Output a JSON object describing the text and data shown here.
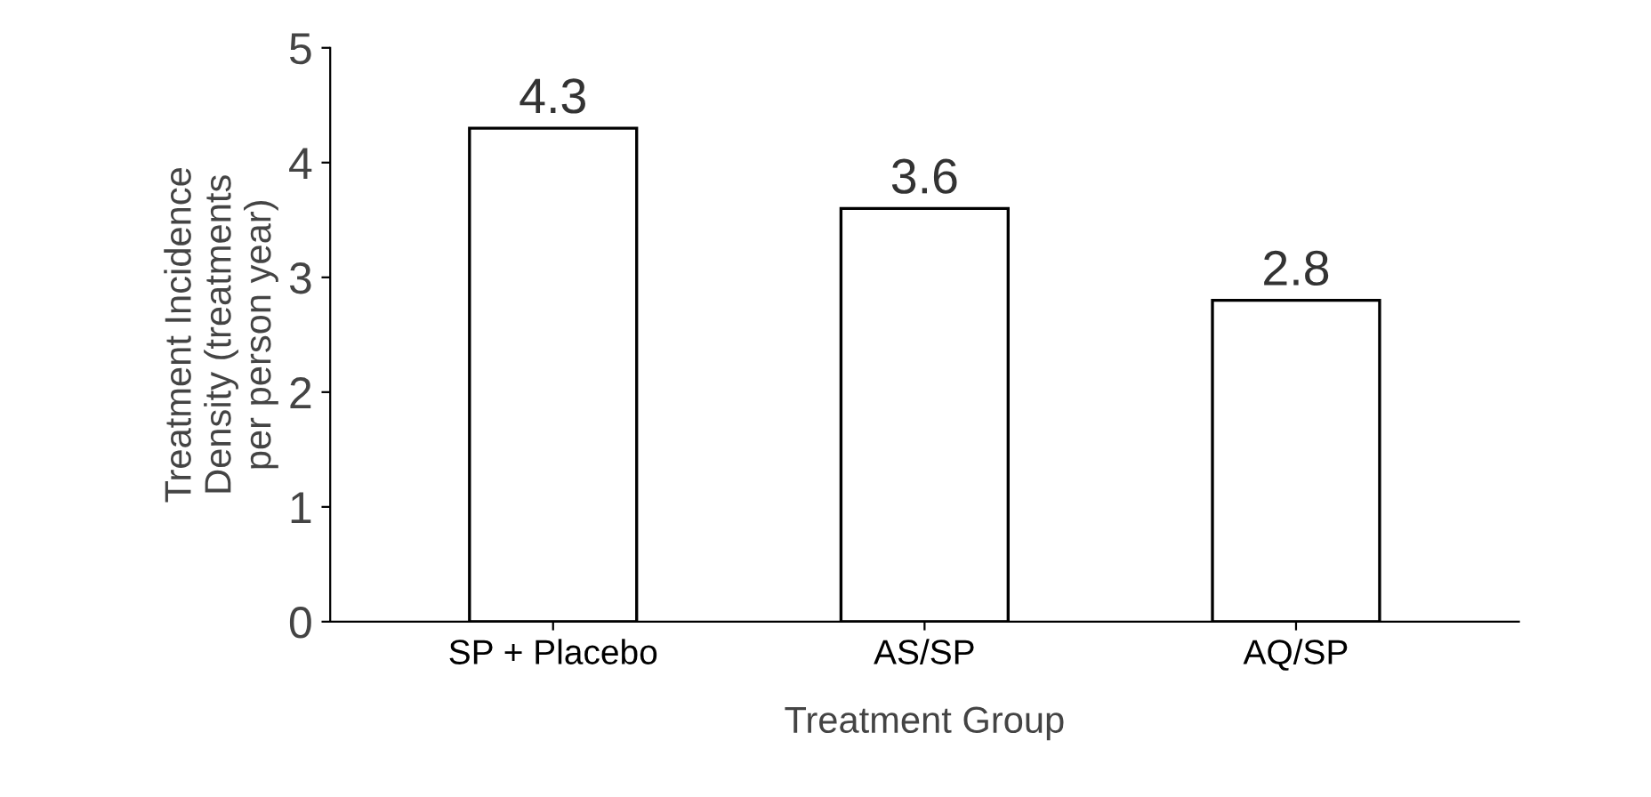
{
  "chart_data": {
    "type": "bar",
    "xlabel": "Treatment Group",
    "ylabel": "Treatment Incidence\nDensity (treatments\nper person year)",
    "categories": [
      "SP + Placebo",
      "AS/SP",
      "AQ/SP"
    ],
    "values": [
      4.3,
      3.6,
      2.8
    ],
    "color": "#ffffff",
    "ylim": [
      0,
      5
    ],
    "yticks": [
      0,
      1,
      2,
      3,
      4,
      5
    ],
    "grid": false,
    "data_labels": true
  }
}
